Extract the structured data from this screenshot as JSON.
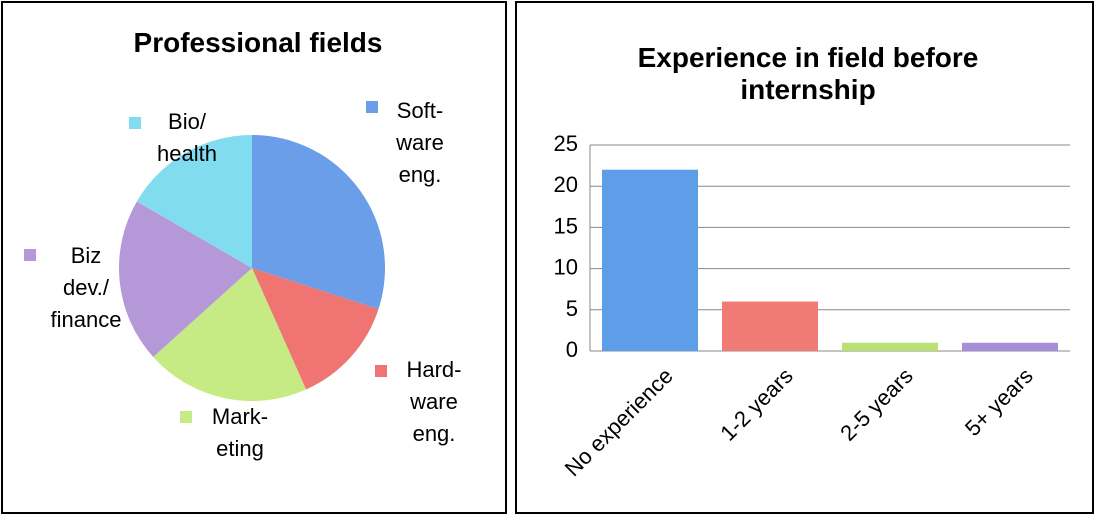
{
  "chart_data": [
    {
      "type": "pie",
      "title": "Professional fields",
      "categories": [
        "Soft-\nware\neng.",
        "Hard-\nware\neng.",
        "Mark-\neting",
        "Biz\ndev./\nfinance",
        "Bio/\nhealth"
      ],
      "values": [
        9,
        4,
        6,
        6,
        5
      ],
      "colors": [
        "#6a9ee8",
        "#f07472",
        "#c6ea84",
        "#b598d8",
        "#82dcef"
      ]
    },
    {
      "type": "bar",
      "title": "Experience in field before\ninternship",
      "categories": [
        "No experience",
        "1-2 years",
        "2-5 years",
        "5+ years"
      ],
      "values": [
        22,
        6,
        1,
        1
      ],
      "colors": [
        "#5e9de8",
        "#f07a76",
        "#b9e072",
        "#a68ed8"
      ],
      "ylim": [
        0,
        25
      ],
      "yticks": [
        0,
        5,
        10,
        15,
        20,
        25
      ],
      "grid": true
    }
  ]
}
